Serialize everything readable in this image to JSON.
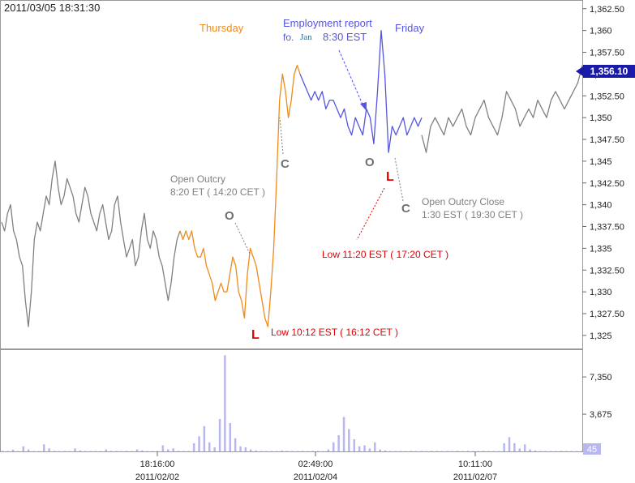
{
  "timestamp": "2011/03/05 18:31:30",
  "chart_data": [
    {
      "type": "line",
      "panel": "price",
      "ylim": [
        1323.5,
        1363.5
      ],
      "y_ticks": [
        1325,
        1327.5,
        1330,
        1332.5,
        1335,
        1337.5,
        1340,
        1342.5,
        1345,
        1347.5,
        1350,
        1352.5,
        1355,
        1357.5,
        1360,
        1362.5
      ],
      "y_tick_labels": [
        "1,325",
        "1,327.50",
        "1,330",
        "1,332.50",
        "1,335",
        "1,337.50",
        "1,340",
        "1,342.50",
        "1,345",
        "1,347.50",
        "1,350",
        "1,352.50",
        "1,355",
        "1,357.50",
        "1,360",
        "1,362.50"
      ],
      "last_price": 1356.1,
      "last_price_label": "1,356.10",
      "x_ticks": [
        {
          "time": "18:16:00",
          "date": "2011/02/02"
        },
        {
          "time": "02:49:00",
          "date": "2011/02/04"
        },
        {
          "time": "10:11:00",
          "date": "2011/02/07"
        }
      ],
      "grid": false,
      "series": [
        {
          "segment": "before",
          "color": "#808080",
          "values": [
            1338,
            1337,
            1339,
            1340,
            1337,
            1336,
            1334,
            1333,
            1329,
            1326,
            1330,
            1336,
            1338,
            1337,
            1339,
            1341,
            1340,
            1343,
            1345,
            1342,
            1340,
            1341,
            1343,
            1342,
            1341,
            1339,
            1338,
            1340,
            1342,
            1341,
            1339,
            1338,
            1337,
            1339,
            1340,
            1338,
            1336,
            1337,
            1340,
            1341,
            1338,
            1336,
            1334,
            1335,
            1336,
            1333,
            1334,
            1337,
            1339,
            1336,
            1335,
            1337,
            1336,
            1334,
            1333,
            1331,
            1329,
            1331,
            1334,
            1336,
            1337
          ]
        },
        {
          "segment": "thursday",
          "color": "#F08A1C",
          "values": [
            1337,
            1336,
            1337,
            1336,
            1337,
            1335,
            1334,
            1334,
            1335,
            1333,
            1332,
            1331,
            1329,
            1330,
            1331,
            1330,
            1330,
            1332,
            1334,
            1333,
            1330,
            1329,
            1327,
            1332,
            1335,
            1334,
            1333,
            1331,
            1329,
            1327,
            1326,
            1330,
            1335,
            1343,
            1352,
            1355,
            1353,
            1350,
            1352,
            1355,
            1356,
            1355
          ]
        },
        {
          "segment": "friday",
          "color": "#5555E0",
          "values": [
            1355,
            1354,
            1353,
            1352,
            1353,
            1352,
            1353,
            1351,
            1352,
            1352,
            1351,
            1350,
            1351,
            1349,
            1348,
            1350,
            1349,
            1348,
            1351,
            1350,
            1347,
            1353,
            1360,
            1355,
            1346,
            1349,
            1348,
            1349,
            1350,
            1348,
            1349,
            1350,
            1349,
            1350
          ]
        },
        {
          "segment": "after",
          "color": "#808080",
          "values": [
            1348,
            1346,
            1349,
            1350,
            1349,
            1348,
            1350,
            1349,
            1350,
            1351,
            1349,
            1348,
            1350,
            1351,
            1352,
            1350,
            1349,
            1348,
            1350,
            1353,
            1352,
            1351,
            1349,
            1350,
            1351,
            1350,
            1352,
            1351,
            1350,
            1352,
            1353,
            1352,
            1351,
            1352,
            1353,
            1354,
            1356
          ]
        }
      ],
      "session_labels": {
        "thursday": "Thursday",
        "friday": "Friday"
      },
      "annotations": {
        "employment_line1": "Employment report",
        "employment_fo": "fo.",
        "employment_jan": "Jan",
        "employment_time": "8:30 EST",
        "open_outcry_line1": "Open Outcry",
        "open_outcry_line2": "8:20 ET ( 14:20 CET )",
        "open_outcry_close_line1": "Open Outcry Close",
        "open_outcry_close_line2": "1:30 EST ( 19:30 CET )",
        "low_thu": "Low  10:12 EST ( 16:12 CET )",
        "low_fri": "Low  11:20 EST ( 17:20 CET )",
        "marker_o": "O",
        "marker_c": "C",
        "marker_l": "L"
      }
    },
    {
      "type": "bar",
      "panel": "volume",
      "y_ticks": [
        3675,
        7350
      ],
      "y_tick_labels": [
        "3,675",
        "7,350"
      ],
      "last_volume_label": "45",
      "color": "#B8B8F0",
      "values": [
        60,
        40,
        180,
        30,
        500,
        200,
        40,
        30,
        700,
        300,
        50,
        30,
        40,
        30,
        300,
        100,
        40,
        30,
        40,
        30,
        200,
        60,
        40,
        30,
        40,
        30,
        200,
        100,
        40,
        30,
        40,
        600,
        200,
        300,
        40,
        30,
        40,
        800,
        1500,
        2500,
        900,
        400,
        3200,
        9500,
        2800,
        1300,
        500,
        400,
        200,
        100,
        40,
        30,
        40,
        30,
        80,
        60,
        40,
        30,
        40,
        30,
        60,
        40,
        30,
        200,
        900,
        1600,
        3400,
        2200,
        1200,
        500,
        600,
        300,
        900,
        200,
        100,
        40,
        30,
        40,
        30,
        40,
        30,
        40,
        30,
        60,
        40,
        30,
        40,
        30,
        40,
        30,
        60,
        40,
        30,
        40,
        30,
        40,
        30,
        800,
        1400,
        800,
        300,
        700,
        200,
        100,
        40,
        30,
        40,
        30,
        40,
        30,
        40,
        30,
        45
      ]
    }
  ]
}
